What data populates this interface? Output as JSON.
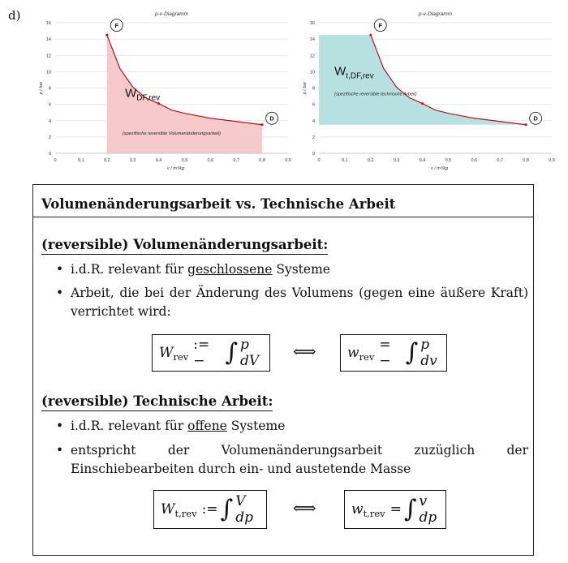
{
  "figure_label": "d)",
  "chart_data": [
    {
      "type": "area",
      "title": "p-v-Diagramm",
      "xlabel": "v / m³/kg",
      "ylabel": "p / bar",
      "xlim": [
        0,
        0.9
      ],
      "ylim": [
        0,
        16
      ],
      "x_ticks": [
        "0",
        "0,1",
        "0,2",
        "0,3",
        "0,4",
        "0,5",
        "0,6",
        "0,7",
        "0,8",
        "0,9"
      ],
      "y_ticks": [
        "0",
        "2",
        "4",
        "6",
        "8",
        "10",
        "12",
        "14",
        "16"
      ],
      "grid": true,
      "series": [
        {
          "x": [
            0.2,
            0.25,
            0.3,
            0.35,
            0.4,
            0.45,
            0.5,
            0.55,
            0.6,
            0.65,
            0.7,
            0.75,
            0.8
          ],
          "y": [
            14.5,
            10.4,
            8.1,
            6.8,
            6.1,
            5.3,
            4.9,
            4.6,
            4.3,
            4.1,
            3.9,
            3.7,
            3.5
          ],
          "color": "#c0101a"
        }
      ],
      "points": [
        {
          "label": "F",
          "x": 0.2,
          "y": 14.5
        },
        {
          "label": "D",
          "x": 0.8,
          "y": 3.5
        }
      ],
      "fill": "under-curve",
      "fill_color": "#f6c9cc",
      "annotation_main": "W",
      "annotation_sub": "DF,rev",
      "annotation_note": "(spezifische reversible Volumenänderungsarbeit)"
    },
    {
      "type": "area",
      "title": "p-v-Diagramm",
      "xlabel": "v / m³/kg",
      "ylabel": "p / bar",
      "xlim": [
        0,
        0.9
      ],
      "ylim": [
        0,
        16
      ],
      "x_ticks": [
        "0",
        "0,1",
        "0,2",
        "0,3",
        "0,4",
        "0,5",
        "0,6",
        "0,7",
        "0,8",
        "0,9"
      ],
      "y_ticks": [
        "0",
        "2",
        "4",
        "6",
        "8",
        "10",
        "12",
        "14",
        "16"
      ],
      "grid": true,
      "series": [
        {
          "x": [
            0.2,
            0.25,
            0.3,
            0.35,
            0.4,
            0.45,
            0.5,
            0.55,
            0.6,
            0.65,
            0.7,
            0.75,
            0.8
          ],
          "y": [
            14.5,
            10.4,
            8.1,
            6.8,
            6.1,
            5.3,
            4.9,
            4.6,
            4.3,
            4.1,
            3.9,
            3.7,
            3.5
          ],
          "color": "#c0101a"
        }
      ],
      "points": [
        {
          "label": "F",
          "x": 0.2,
          "y": 14.5
        },
        {
          "label": "D",
          "x": 0.8,
          "y": 3.5
        }
      ],
      "fill": "left-of-curve",
      "fill_color": "#b7e1e1",
      "annotation_main": "W",
      "annotation_sub": "t,DF,rev",
      "annotation_note": "(spezifische reversible technische Arbeit)"
    }
  ],
  "box": {
    "title": "Volumenänderungsarbeit vs. Technische Arbeit",
    "section1": {
      "title": "(reversible) Volumenänderungsarbeit:",
      "bullet1_pre": "i.d.R. relevant für ",
      "bullet1_ul": "geschlossene",
      "bullet1_post": " Systeme",
      "bullet2": "Arbeit, die bei der Änderung des Volumens (gegen eine äußere Kraft) verrichtet wird:",
      "formula_left": {
        "lhs": "W",
        "sub": "rev",
        "op": ":= −",
        "integral": "∫",
        "integrand": "p dV"
      },
      "iff": "⟺",
      "formula_right": {
        "lhs": "w",
        "sub": "rev",
        "op": "= −",
        "integral": "∫",
        "integrand": "p dv"
      }
    },
    "section2": {
      "title": "(reversible) Technische Arbeit:",
      "bullet1_pre": "i.d.R. relevant für ",
      "bullet1_ul": "offene",
      "bullet1_post": " Systeme",
      "bullet2": "entspricht der Volumenänderungsarbeit zuzüglich der Einschiebearbeiten durch ein- und austetende Masse",
      "formula_left": {
        "lhs": "W",
        "sub": "t,rev",
        "op": ":=",
        "integral": "∫",
        "integrand": "V dp"
      },
      "iff": "⟺",
      "formula_right": {
        "lhs": "w",
        "sub": "t,rev",
        "op": "=",
        "integral": "∫",
        "integrand": "v dp"
      }
    }
  }
}
